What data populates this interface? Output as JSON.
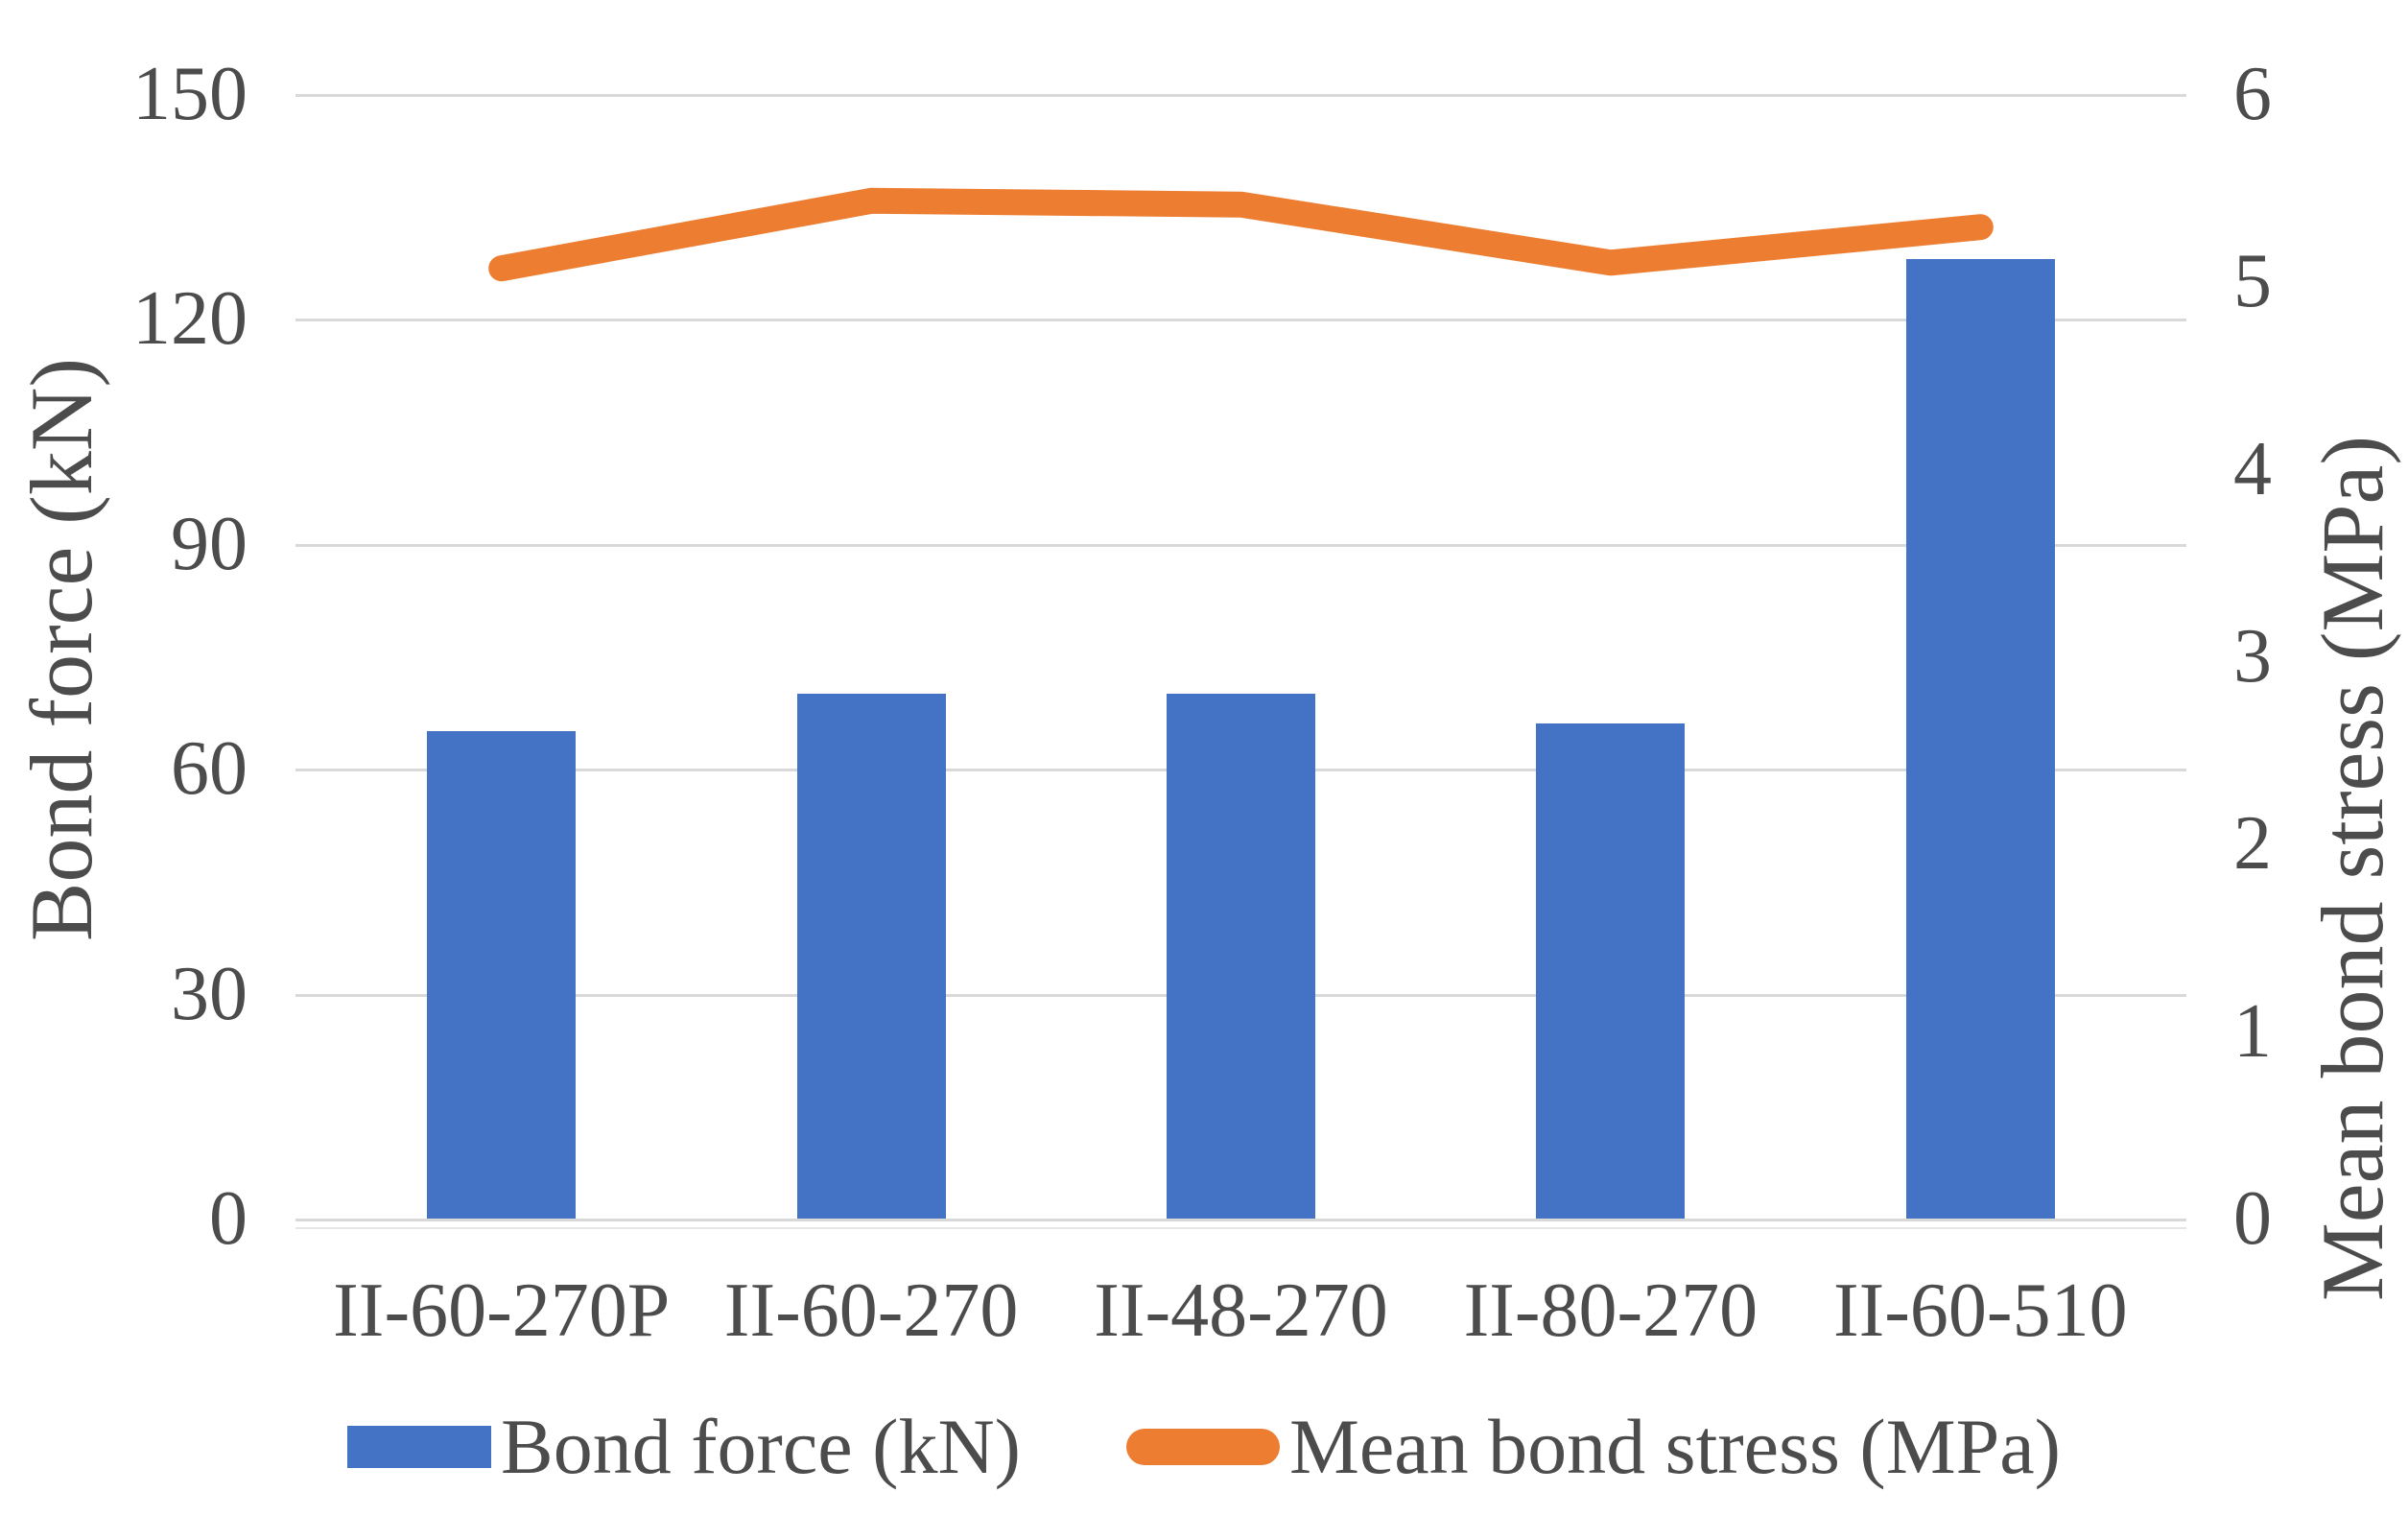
{
  "chart_data": {
    "type": "bar",
    "subtype": "combo-bar-line-dual-axis",
    "categories": [
      "II-60-270P",
      "II-60-270",
      "II-48-270",
      "II-80-270",
      "II-60-510"
    ],
    "series": [
      {
        "name": "Bond force (kN)",
        "type": "bar",
        "axis": "left",
        "color": "#4472c4",
        "values": [
          65,
          70,
          70,
          66,
          128
        ]
      },
      {
        "name": "Mean bond stress (MPa)",
        "type": "line",
        "axis": "right",
        "color": "#ed7d31",
        "values": [
          5.07,
          5.43,
          5.41,
          5.1,
          5.29
        ]
      }
    ],
    "left_axis": {
      "title": "Bond force (kN)",
      "min": 0,
      "max": 150,
      "tick_step": 30,
      "ticks": [
        "150",
        "120",
        "90",
        "60",
        "30",
        "0"
      ]
    },
    "right_axis": {
      "title": "Mean bond stress (MPa)",
      "min": 0,
      "max": 6,
      "tick_step": 1,
      "ticks": [
        "6",
        "5",
        "4",
        "3",
        "2",
        "1",
        "0"
      ]
    },
    "grid": "horizontal-on",
    "legend_position": "bottom",
    "legend": [
      "Bond force (kN)",
      "Mean bond stress (MPa)"
    ],
    "colors": {
      "bar_fill": "#4472c4",
      "line_stroke": "#ed7d31",
      "gridline": "#d9d9d9",
      "text": "#4c4c4c",
      "background": "#ffffff"
    }
  }
}
